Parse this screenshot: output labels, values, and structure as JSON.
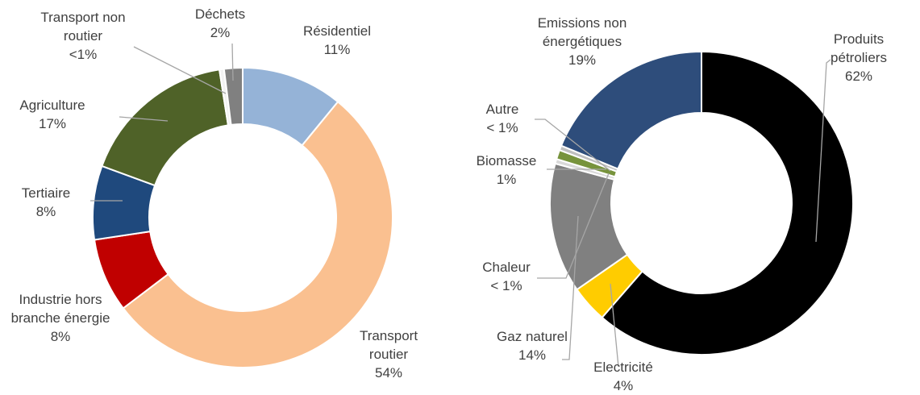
{
  "chart_data": [
    {
      "type": "donut",
      "categories": [
        "Résidentiel",
        "Transport routier",
        "Industrie hors branche énergie",
        "Tertiaire",
        "Agriculture",
        "Transport non routier",
        "Déchets"
      ],
      "values": [
        11,
        54,
        8,
        8,
        17,
        0.5,
        2
      ],
      "value_labels": [
        "11%",
        "54%",
        "8%",
        "8%",
        "17%",
        "<1%",
        "2%"
      ],
      "colors": [
        "#95b3d7",
        "#fac090",
        "#c00000",
        "#1f497d",
        "#4f6228",
        "#f2f2f2",
        "#808080"
      ]
    },
    {
      "type": "donut",
      "categories": [
        "Produits pétroliers",
        "Electricité",
        "Gaz naturel",
        "Chaleur",
        "Biomasse",
        "Autre",
        "Emissions non énergétiques"
      ],
      "values": [
        62,
        4,
        14,
        0.5,
        1,
        0.5,
        19
      ],
      "value_labels": [
        "62%",
        "4%",
        "14%",
        "< 1%",
        "1%",
        "< 1%",
        "19%"
      ],
      "colors": [
        "#000000",
        "#ffcc00",
        "#808080",
        "#d9d9d9",
        "#77933c",
        "#bfbfbf",
        "#2e4d7b"
      ]
    }
  ]
}
